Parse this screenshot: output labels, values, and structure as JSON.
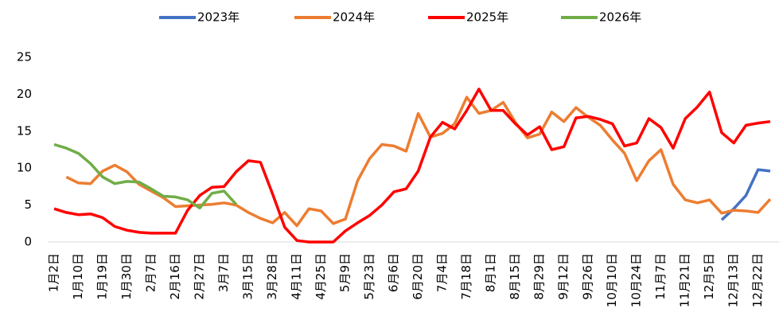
{
  "chart_data": {
    "type": "line",
    "categories": [
      "1月2日",
      null,
      "1月10日",
      null,
      "1月19日",
      null,
      "1月30日",
      null,
      "2月7日",
      null,
      "2月16日",
      null,
      "2月27日",
      null,
      "3月7日",
      null,
      "3月15日",
      null,
      "3月28日",
      null,
      "4月11日",
      null,
      "4月25日",
      null,
      "5月9日",
      null,
      "5月23日",
      null,
      "6月6日",
      null,
      "6月20日",
      null,
      "7月4日",
      null,
      "7月18日",
      null,
      "8月1日",
      null,
      "8月15日",
      null,
      "8月29日",
      null,
      "9月12日",
      null,
      "9月26日",
      null,
      "10月10日",
      null,
      "10月24日",
      null,
      "11月7日",
      null,
      "11月21日",
      null,
      "12月5日",
      null,
      "12月13日",
      null,
      "12月22日",
      null
    ],
    "series": [
      {
        "name": "2023年",
        "color": "#4472c4",
        "values": [
          null,
          null,
          null,
          null,
          null,
          null,
          null,
          null,
          null,
          null,
          null,
          null,
          null,
          null,
          null,
          null,
          null,
          null,
          null,
          null,
          null,
          null,
          null,
          null,
          null,
          null,
          null,
          null,
          null,
          null,
          null,
          null,
          null,
          null,
          null,
          null,
          null,
          null,
          null,
          null,
          null,
          null,
          null,
          null,
          null,
          null,
          null,
          null,
          null,
          null,
          null,
          null,
          null,
          null,
          null,
          3.0,
          4.5,
          6.3,
          9.8,
          9.6
        ]
      },
      {
        "name": "2024年",
        "color": "#ed7d31",
        "values": [
          null,
          8.8,
          8.0,
          7.9,
          9.6,
          10.4,
          9.5,
          7.8,
          6.9,
          6.0,
          4.8,
          4.9,
          5.0,
          5.1,
          5.3,
          5.0,
          4.0,
          3.2,
          2.6,
          4.0,
          2.2,
          4.5,
          4.2,
          2.5,
          3.1,
          8.3,
          11.3,
          13.2,
          13.0,
          12.3,
          17.4,
          14.2,
          14.7,
          16.0,
          19.6,
          17.4,
          17.8,
          18.9,
          16.2,
          14.1,
          14.6,
          17.6,
          16.3,
          18.2,
          16.9,
          15.8,
          13.8,
          12.0,
          8.3,
          11.0,
          12.5,
          7.8,
          5.7,
          5.3,
          5.7,
          3.9,
          4.3,
          4.2,
          4.0,
          5.8
        ]
      },
      {
        "name": "2025年",
        "color": "#ff0000",
        "values": [
          4.5,
          4.0,
          3.7,
          3.8,
          3.3,
          2.1,
          1.6,
          1.3,
          1.2,
          1.2,
          1.2,
          4.3,
          6.3,
          7.4,
          7.5,
          9.5,
          11.0,
          10.8,
          6.5,
          2.0,
          0.2,
          0,
          0,
          0,
          1.5,
          2.6,
          3.6,
          5.0,
          6.8,
          7.2,
          9.6,
          14.2,
          16.2,
          15.3,
          17.8,
          20.7,
          17.8,
          17.8,
          16.0,
          14.5,
          15.6,
          12.5,
          12.9,
          16.8,
          17.0,
          16.6,
          16.0,
          13.0,
          13.4,
          16.7,
          15.5,
          12.7,
          16.7,
          18.3,
          20.3,
          14.8,
          13.4,
          15.8,
          16.1,
          16.3
        ]
      },
      {
        "name": "2026年",
        "color": "#70ad47",
        "values": [
          13.2,
          12.7,
          12.0,
          10.6,
          8.8,
          7.9,
          8.2,
          8.1,
          7.2,
          6.2,
          6.1,
          5.7,
          4.6,
          6.6,
          6.9,
          5.1,
          null,
          null,
          null,
          null,
          null,
          null,
          null,
          null,
          null,
          null,
          null,
          null,
          null,
          null,
          null,
          null,
          null,
          null,
          null,
          null,
          null,
          null,
          null,
          null,
          null,
          null,
          null,
          null,
          null,
          null,
          null,
          null,
          null,
          null,
          null,
          null,
          null,
          null,
          null,
          null,
          null,
          null,
          null,
          null
        ]
      }
    ],
    "ylim": [
      0,
      25
    ],
    "yticks": [
      0,
      5,
      10,
      15,
      20,
      25
    ],
    "grid": false,
    "legend": "top"
  }
}
